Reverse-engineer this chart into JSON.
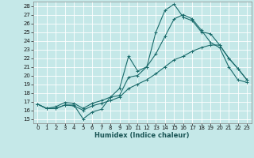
{
  "xlabel": "Humidex (Indice chaleur)",
  "xlim": [
    -0.5,
    23.5
  ],
  "ylim": [
    14.5,
    28.5
  ],
  "xticks": [
    0,
    1,
    2,
    3,
    4,
    5,
    6,
    7,
    8,
    9,
    10,
    11,
    12,
    13,
    14,
    15,
    16,
    17,
    18,
    19,
    20,
    21,
    22,
    23
  ],
  "yticks": [
    15,
    16,
    17,
    18,
    19,
    20,
    21,
    22,
    23,
    24,
    25,
    26,
    27,
    28
  ],
  "bg_color": "#c5e8e8",
  "line_color": "#1a6b6b",
  "grid_color": "#b0d8d8",
  "lines": [
    {
      "x": [
        0,
        1,
        2,
        3,
        4,
        5,
        6,
        7,
        8,
        9,
        10,
        11,
        12,
        13,
        14,
        15,
        16,
        17,
        18,
        19,
        20,
        21,
        22,
        23
      ],
      "y": [
        16.7,
        16.2,
        16.2,
        16.6,
        16.6,
        15.0,
        15.8,
        16.1,
        17.5,
        18.5,
        22.2,
        20.5,
        21.0,
        25.0,
        27.5,
        28.2,
        26.7,
        26.3,
        25.0,
        24.8,
        23.5,
        22.0,
        20.8,
        19.5
      ]
    },
    {
      "x": [
        0,
        1,
        2,
        3,
        4,
        5,
        6,
        7,
        8,
        9,
        10,
        11,
        12,
        13,
        14,
        15,
        16,
        17,
        18,
        19,
        20,
        21,
        22,
        23
      ],
      "y": [
        16.7,
        16.2,
        16.2,
        16.6,
        16.5,
        16.0,
        16.5,
        16.8,
        17.1,
        17.5,
        18.5,
        19.0,
        19.5,
        20.2,
        21.0,
        21.8,
        22.2,
        22.8,
        23.2,
        23.5,
        23.5,
        22.0,
        20.8,
        19.5
      ]
    },
    {
      "x": [
        0,
        1,
        2,
        3,
        4,
        5,
        6,
        7,
        8,
        9,
        10,
        11,
        12,
        13,
        14,
        15,
        16,
        17,
        18,
        19,
        20,
        21,
        22,
        23
      ],
      "y": [
        16.7,
        16.2,
        16.4,
        16.9,
        16.8,
        16.2,
        16.8,
        17.1,
        17.5,
        17.7,
        19.8,
        20.0,
        21.0,
        22.5,
        24.5,
        26.5,
        27.0,
        26.5,
        25.2,
        23.8,
        23.2,
        21.0,
        19.5,
        19.2
      ]
    }
  ]
}
